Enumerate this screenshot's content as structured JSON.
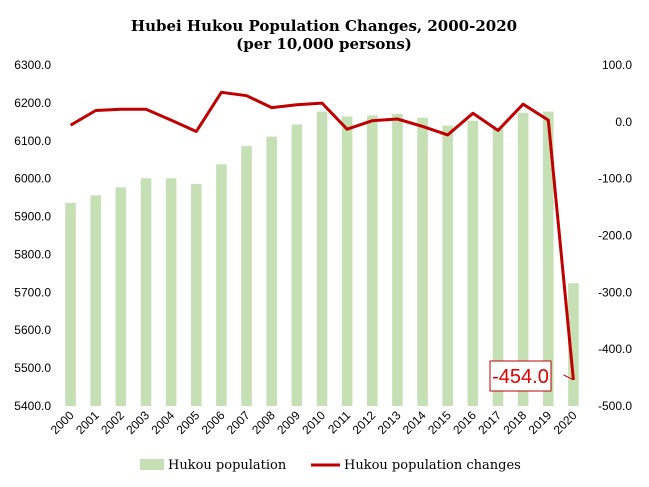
{
  "chart_data": {
    "type": "bar+line",
    "title": "Hubei Hukou Population Changes, 2000-2020",
    "subtitle": "(per 10,000  persons)",
    "categories": [
      "2000",
      "2001",
      "2002",
      "2003",
      "2004",
      "2005",
      "2006",
      "2007",
      "2008",
      "2009",
      "2010",
      "2011",
      "2012",
      "2013",
      "2014",
      "2015",
      "2016",
      "2017",
      "2018",
      "2019",
      "2020"
    ],
    "series": [
      {
        "name": "Hukou population",
        "type": "bar",
        "axis": "left",
        "color": "#c5e0b4",
        "values": [
          5936,
          5956,
          5977,
          6001,
          6001,
          5986,
          6038,
          6086,
          6111,
          6143,
          6177,
          6164,
          6167,
          6171,
          6161,
          6140,
          6153,
          6131,
          6174,
          6177,
          5724
        ]
      },
      {
        "name": "Hukou population changes",
        "type": "line",
        "axis": "right",
        "color": "#c00000",
        "values": [
          -6,
          20,
          22,
          22,
          3,
          -17,
          52,
          46,
          25,
          30,
          33,
          -13,
          2,
          5,
          -8,
          -23,
          15,
          -15,
          31,
          3,
          -454
        ]
      }
    ],
    "y_left": {
      "min": 5400,
      "max": 6300,
      "step": 100,
      "ticks": [
        "5400.0",
        "5500.0",
        "5600.0",
        "5700.0",
        "5800.0",
        "5900.0",
        "6000.0",
        "6100.0",
        "6200.0",
        "6300.0"
      ]
    },
    "y_right": {
      "min": -500,
      "max": 100,
      "step": 100,
      "ticks": [
        "-500.0",
        "-400.0",
        "-300.0",
        "-200.0",
        "-100.0",
        "0.0",
        "100.0"
      ]
    },
    "annotation": {
      "text": "-454.0",
      "category": "2020",
      "color": "#e00000",
      "border": "#c00000"
    },
    "legend": {
      "placement": "bottom",
      "items": [
        "Hukou population",
        "Hukou population changes"
      ]
    },
    "grid": false
  }
}
